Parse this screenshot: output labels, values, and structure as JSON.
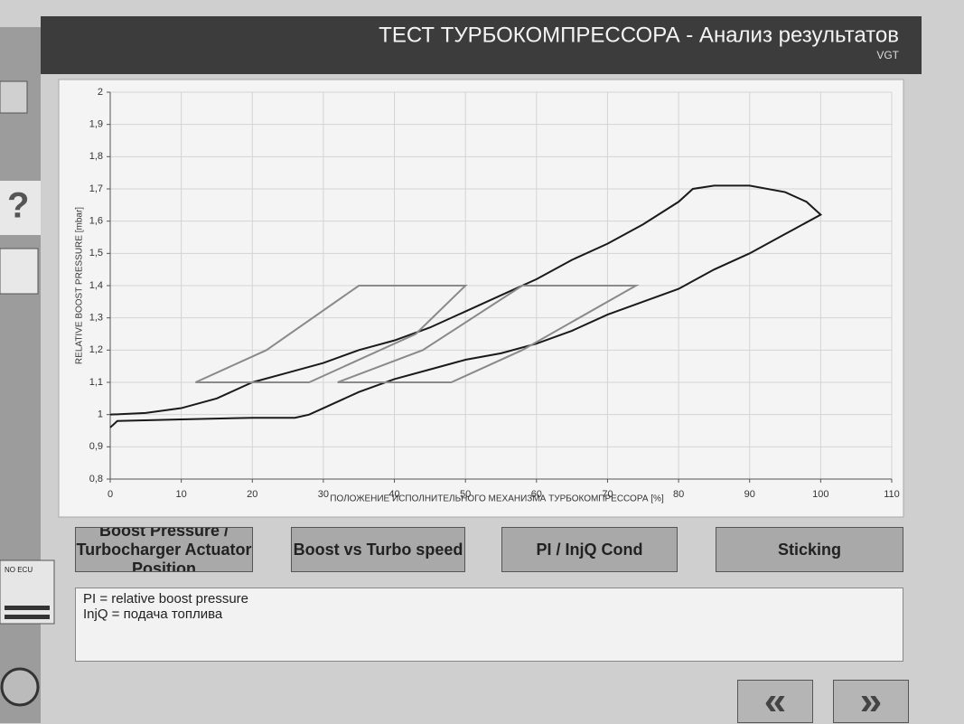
{
  "header": {
    "title": "ТЕСТ ТУРБОКОМПРЕССОРА - Анализ результатов",
    "subtitle": "VGT"
  },
  "sidebar": {
    "status": "NO ECU"
  },
  "chart_data": {
    "type": "line",
    "y_label": "RELATIVE BOOST PRESSURE [mbar]",
    "x_label": "ПОЛОЖЕНИЕ ИСПОЛНИТЕЛЬНОГО МЕХАНИЗМА ТУРБОКОМПРЕССОРА [%]",
    "xlim": [
      0,
      110
    ],
    "ylim": [
      0.8,
      2
    ],
    "xticks": [
      0,
      10,
      20,
      30,
      40,
      50,
      60,
      70,
      80,
      90,
      100,
      110
    ],
    "yticks": [
      {
        "value": 0.8,
        "label": "0,8"
      },
      {
        "value": 0.9,
        "label": "0,9"
      },
      1,
      {
        "value": 1.1,
        "label": "1,1"
      },
      {
        "value": 1.2,
        "label": "1,2"
      },
      {
        "value": 1.3,
        "label": "1,3"
      },
      {
        "value": 1.4,
        "label": "1,4"
      },
      {
        "value": 1.5,
        "label": "1,5"
      },
      {
        "value": 1.6,
        "label": "1,6"
      },
      {
        "value": 1.7,
        "label": "1,7"
      },
      {
        "value": 1.8,
        "label": "1,8"
      },
      {
        "value": 1.9,
        "label": "1,9"
      },
      2
    ],
    "grid": true,
    "series": [
      {
        "color": "#1a1a1a",
        "x": [
          0,
          1,
          10,
          20,
          26,
          28,
          30,
          35,
          40,
          45,
          50,
          55,
          60,
          65,
          70,
          75,
          80,
          85,
          90,
          95,
          100,
          98,
          95,
          90,
          85,
          82,
          80,
          75,
          70,
          65,
          60,
          55,
          50,
          45,
          40,
          35,
          30,
          25,
          20,
          15,
          10,
          5,
          0
        ],
        "y": [
          0.96,
          0.98,
          0.985,
          0.99,
          0.99,
          1.0,
          1.02,
          1.07,
          1.11,
          1.14,
          1.17,
          1.19,
          1.22,
          1.26,
          1.31,
          1.35,
          1.39,
          1.45,
          1.5,
          1.56,
          1.62,
          1.66,
          1.69,
          1.71,
          1.71,
          1.7,
          1.66,
          1.59,
          1.53,
          1.48,
          1.42,
          1.37,
          1.32,
          1.27,
          1.23,
          1.2,
          1.16,
          1.13,
          1.1,
          1.05,
          1.02,
          1.005,
          1.0
        ]
      },
      {
        "color": "#8a8a8a",
        "x": [
          12,
          22,
          35,
          50,
          43,
          28,
          12
        ],
        "y": [
          1.1,
          1.2,
          1.4,
          1.4,
          1.25,
          1.1,
          1.1
        ]
      },
      {
        "color": "#8a8a8a",
        "x": [
          32,
          44,
          58,
          74,
          58,
          48,
          32
        ],
        "y": [
          1.1,
          1.2,
          1.4,
          1.4,
          1.2,
          1.1,
          1.1
        ]
      }
    ]
  },
  "buttons": [
    "Boost Pressure / Turbocharger Actuator Position",
    "Boost vs Turbo speed",
    "PI / InjQ Cond",
    "Sticking"
  ],
  "notes": [
    "PI = relative boost pressure",
    "InjQ = подача топлива"
  ],
  "nav": {
    "back": "«",
    "forward": "»"
  }
}
